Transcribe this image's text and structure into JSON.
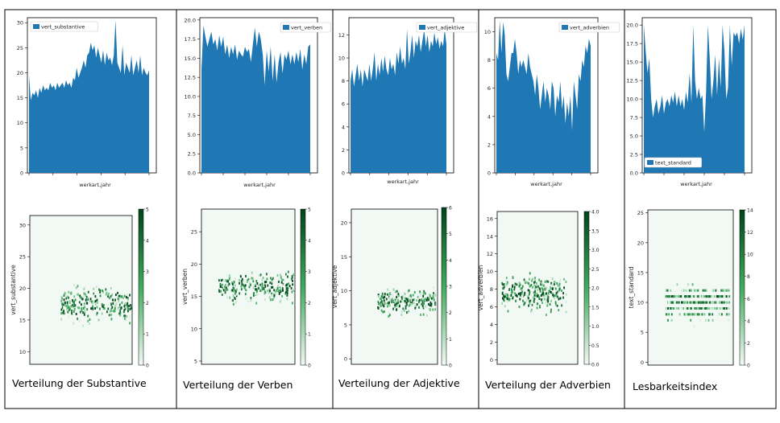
{
  "colors": {
    "area": "#1f77b4",
    "hist_low": "#f2f9f4",
    "hist_mid": "#41ab5d",
    "hist_high": "#00441b",
    "border": "#000000"
  },
  "panels": [
    {
      "caption": "Verteilung der Substantive",
      "area": {
        "type": "area",
        "legend": "vert_substantive",
        "legend_pos": "top-left",
        "xlabel": "werkart,jahr",
        "ylim": [
          0,
          31
        ],
        "yticks": [
          0,
          5,
          10,
          15,
          20,
          25,
          30
        ],
        "values": [
          19.5,
          14.5,
          16,
          15.5,
          16.5,
          15,
          17,
          16,
          17.5,
          16.5,
          17,
          16.5,
          18,
          17,
          17.5,
          16.5,
          18,
          17,
          17.5,
          18,
          17,
          18.5,
          17.5,
          18,
          17,
          19,
          18.5,
          21,
          19,
          20,
          21,
          22.5,
          21,
          23.5,
          24,
          26,
          24.5,
          25.5,
          23,
          25,
          23.5,
          22,
          24.5,
          21.5,
          24,
          22.5,
          23,
          21.5,
          23.5,
          30.5,
          22,
          21,
          20,
          25.5,
          19.5,
          22,
          21,
          20,
          23.5,
          19.5,
          21,
          22.5,
          20,
          23.5,
          19.5,
          21,
          20,
          19.5,
          20.5
        ]
      },
      "hist": {
        "type": "heatmap",
        "ylabel": "vert_substantive",
        "ylim": [
          8,
          31.5
        ],
        "yticks": [
          10,
          15,
          20,
          25,
          30
        ],
        "cbar_ticks": [
          0,
          1,
          2,
          3,
          4,
          5
        ],
        "cbar_max": 5,
        "center_y": 17.5,
        "spread_y": 2.6,
        "count": 260,
        "xfrac": [
          0.3,
          1.0
        ],
        "hot": 0.45
      }
    },
    {
      "caption": "Verteilung der Verben",
      "area": {
        "type": "area",
        "legend": "vert_verben",
        "legend_pos": "top-right",
        "xlabel": "werkart,jahr",
        "ylim": [
          0,
          20.3
        ],
        "yticks": [
          0.0,
          2.5,
          5.0,
          7.5,
          10.0,
          12.5,
          15.0,
          17.5,
          20.0
        ],
        "values": [
          13.5,
          19.3,
          17.8,
          16.5,
          17.5,
          18.5,
          16.8,
          17.5,
          16,
          18,
          16.5,
          17.8,
          15.5,
          16.8,
          15,
          16.5,
          15.5,
          16.8,
          14.8,
          16,
          15.5,
          15.2,
          16.5,
          15.8,
          16.2,
          14.5,
          16.8,
          19,
          16.5,
          18.5,
          17.5,
          15.5,
          11.5,
          16,
          13.2,
          16.5,
          12,
          15.5,
          11.8,
          14.5,
          15.8,
          13,
          15.5,
          14.8,
          16,
          14.2,
          15.5,
          14.2,
          15.8,
          14.5,
          16.2,
          13.5,
          15.5,
          14.2,
          16.5,
          16.8
        ]
      },
      "hist": {
        "type": "heatmap",
        "ylabel": "vert_verben",
        "ylim": [
          4.5,
          28.5
        ],
        "yticks": [
          5,
          10,
          15,
          20,
          25
        ],
        "cbar_ticks": [
          0,
          1,
          2,
          3,
          4,
          5
        ],
        "cbar_max": 5,
        "center_y": 16.5,
        "spread_y": 2.2,
        "count": 240,
        "xfrac": [
          0.18,
          1.0
        ],
        "hot": 0.45
      }
    },
    {
      "caption": "Verteilung der Adjektive",
      "area": {
        "type": "area",
        "legend": "vert_adjektive",
        "legend_pos": "top-right",
        "xlabel": "werkart,jahr",
        "ylim": [
          0,
          13.5
        ],
        "yticks": [
          0,
          2,
          4,
          6,
          8,
          10,
          12
        ],
        "values": [
          8,
          9,
          7.5,
          8.5,
          9.5,
          8,
          9,
          7.5,
          9,
          8.5,
          8,
          9.5,
          8,
          9,
          10.5,
          8,
          9.5,
          8.5,
          10,
          8.8,
          10.2,
          9,
          8.5,
          10,
          9,
          9.5,
          8.5,
          10.5,
          9.5,
          11,
          9.5,
          10,
          9,
          12.5,
          9.5,
          10.5,
          12,
          10,
          11.5,
          11,
          12,
          10.5,
          11.5,
          12.5,
          11,
          12,
          10.5,
          11.5,
          11,
          12.2,
          11.2,
          11.8,
          10.8,
          11.5,
          11,
          12.5,
          11.2
        ]
      },
      "hist": {
        "type": "heatmap",
        "ylabel": "vert_adjektive",
        "ylim": [
          -0.8,
          22
        ],
        "yticks": [
          0,
          5,
          10,
          15,
          20
        ],
        "cbar_ticks": [
          0,
          1,
          2,
          3,
          4,
          5,
          6
        ],
        "cbar_max": 6,
        "center_y": 8.5,
        "spread_y": 1.6,
        "count": 220,
        "xfrac": [
          0.3,
          1.0
        ],
        "hot": 0.5
      }
    },
    {
      "caption": "Verteilung der Adverbien",
      "area": {
        "type": "area",
        "legend": "vert_adverbien",
        "legend_pos": "top-right",
        "xlabel": "werkart,jahr",
        "ylim": [
          0,
          11
        ],
        "yticks": [
          0,
          2,
          4,
          6,
          8,
          10
        ],
        "values": [
          8.5,
          8,
          10.8,
          8.5,
          10.7,
          9.8,
          7,
          6.5,
          7.5,
          8.5,
          8.5,
          9.5,
          8.5,
          7,
          8,
          7.5,
          8,
          7.5,
          7,
          8.5,
          7.5,
          7,
          6.5,
          5.5,
          7,
          6,
          4.5,
          5.5,
          6.5,
          5,
          6,
          5.5,
          4.5,
          6.5,
          6,
          4,
          5.5,
          5,
          6.5,
          4.5,
          5.5,
          3.5,
          5,
          4,
          5.5,
          3,
          6.5,
          5.5,
          4.5,
          7,
          6.5,
          8,
          7.5,
          9,
          8.5,
          9.5,
          9
        ]
      },
      "hist": {
        "type": "heatmap",
        "ylabel": "vert_adverbien",
        "ylim": [
          -0.5,
          16.8
        ],
        "yticks": [
          0,
          2,
          4,
          6,
          8,
          10,
          12,
          14,
          16
        ],
        "cbar_ticks": [
          0.0,
          0.5,
          1.0,
          1.5,
          2.0,
          2.5,
          3.0,
          3.5,
          4.0
        ],
        "cbar_max": 4,
        "center_y": 7.5,
        "spread_y": 1.8,
        "count": 260,
        "xfrac": [
          0.05,
          0.85
        ],
        "hot": 0.45
      }
    },
    {
      "caption": "Lesbarkeitsindex",
      "area": {
        "type": "area",
        "legend": "text_standard",
        "legend_pos": "bottom-left",
        "xlabel": "werkart,jahr",
        "ylim": [
          0,
          21
        ],
        "yticks": [
          0.0,
          2.5,
          5.0,
          7.5,
          10.0,
          12.5,
          15.0,
          17.5,
          20.0
        ],
        "values": [
          20,
          16.5,
          13.5,
          15.5,
          10,
          7.5,
          9,
          10,
          8,
          9,
          10.5,
          8,
          9.5,
          10,
          9,
          10.5,
          9.5,
          11,
          9,
          10.5,
          9,
          10,
          8.5,
          11,
          9.5,
          13.5,
          9.5,
          20,
          12.5,
          10,
          11.5,
          10,
          10.5,
          5.5,
          11,
          20,
          15.5,
          10,
          12.5,
          16,
          10.5,
          15.5,
          11.5,
          20,
          16.5,
          10,
          11.5,
          20,
          14.5,
          19,
          18.5,
          19,
          17.5,
          19.5,
          18,
          20
        ]
      },
      "hist": {
        "type": "heatmap",
        "ylabel": "text_standard",
        "ylim": [
          -0.5,
          25.5
        ],
        "yticks": [
          0,
          5,
          10,
          15,
          20,
          25
        ],
        "cbar_ticks": [
          0,
          2,
          4,
          6,
          8,
          10,
          12,
          14
        ],
        "cbar_max": 14,
        "center_y": 10,
        "spread_y": 2.5,
        "count": 300,
        "xfrac": [
          0.2,
          0.95
        ],
        "hot": 0.3,
        "banded": true
      }
    }
  ]
}
